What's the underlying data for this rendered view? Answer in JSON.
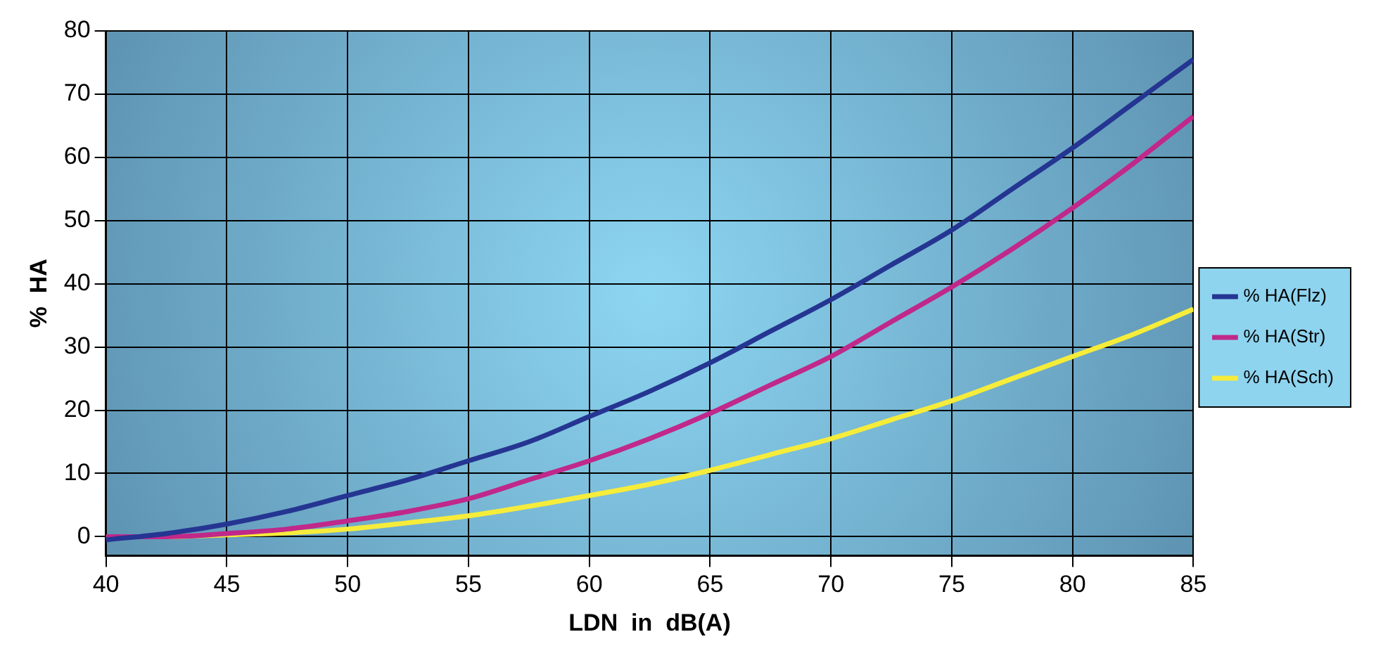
{
  "chart_data": {
    "type": "line",
    "xlabel": "LDN  in  dB(A)",
    "ylabel": "%  HA",
    "x": [
      40,
      42.5,
      45,
      47.5,
      50,
      52.5,
      55,
      57.5,
      60,
      62.5,
      65,
      67.5,
      70,
      72.5,
      75,
      77.5,
      80,
      82.5,
      85
    ],
    "series": [
      {
        "name": "% HA(Flz)",
        "color": "#253592",
        "values": [
          -0.5,
          0.5,
          2,
          4,
          6.5,
          9,
          12,
          15,
          19,
          23,
          27.5,
          32.5,
          37.5,
          43,
          48.5,
          55,
          61.5,
          68.5,
          75.5
        ]
      },
      {
        "name": "% HA(Str)",
        "color": "#c0288a",
        "values": [
          0,
          0,
          0.5,
          1.2,
          2.5,
          4,
          6,
          9,
          12,
          15.5,
          19.5,
          24,
          28.5,
          34,
          39.5,
          45.5,
          52,
          59,
          66.5
        ]
      },
      {
        "name": "% HA(Sch)",
        "color": "#f6ec3a",
        "values": [
          0,
          0,
          0.3,
          0.6,
          1.2,
          2.2,
          3.3,
          4.8,
          6.5,
          8.3,
          10.5,
          13,
          15.5,
          18.5,
          21.5,
          25,
          28.5,
          32,
          36
        ]
      }
    ],
    "xlim": [
      40,
      85
    ],
    "xticks": [
      40,
      45,
      50,
      55,
      60,
      65,
      70,
      75,
      80,
      85
    ],
    "ylim": [
      -3,
      80
    ],
    "yticks": [
      0,
      10,
      20,
      30,
      40,
      50,
      60,
      70,
      80
    ],
    "grid": true,
    "legend": "right",
    "marker": "none",
    "line_style": "solid"
  }
}
